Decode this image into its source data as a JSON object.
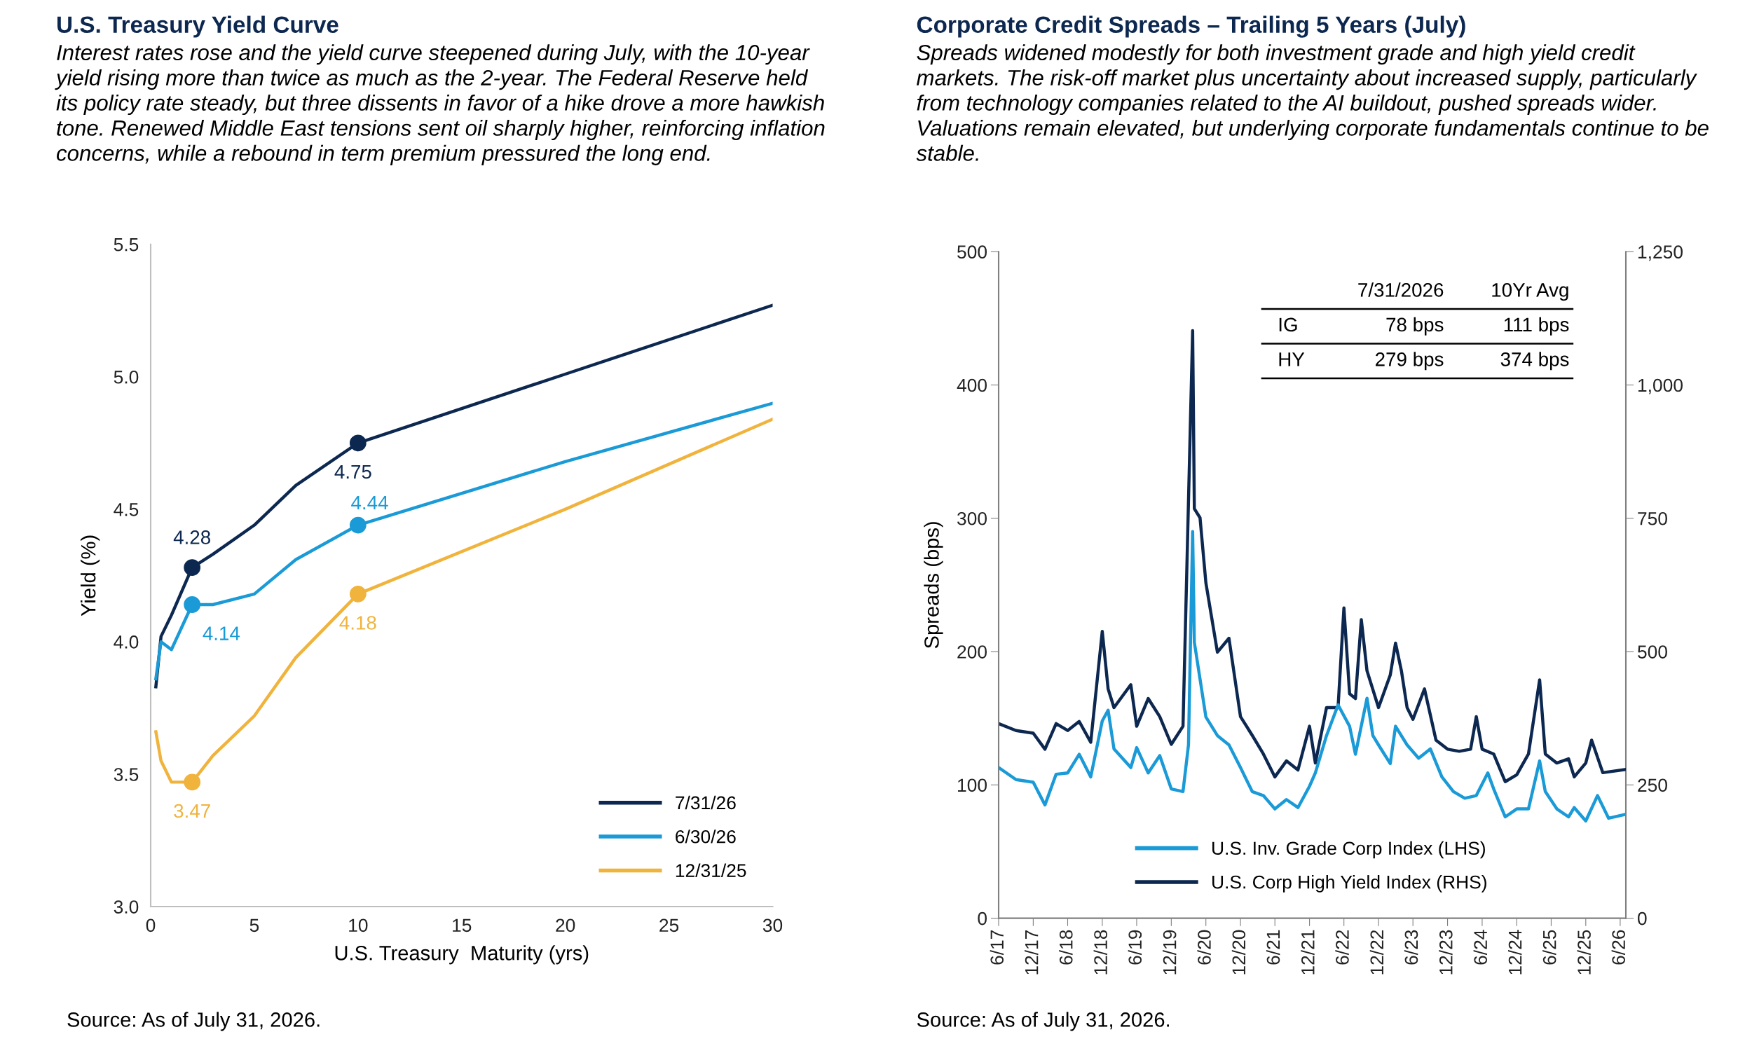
{
  "chart_data": [
    {
      "type": "line",
      "title": "U.S. Treasury Yield Curve",
      "subtitle": "Interest rates rose and the yield curve steepened during July, with the 10-year yield rising more than twice as much as the 2-year. The Federal Reserve held its policy rate steady, but three dissents in favor of a hike drove a more hawkish tone. Renewed Middle East tensions sent oil sharply higher, reinforcing inflation concerns, while a rebound in term premium pressured the long end.",
      "xlabel": "U.S. Treasury  Maturity (yrs)",
      "ylabel": "Yield (%)",
      "xlim": [
        0,
        30
      ],
      "xticks": [
        0,
        5,
        10,
        15,
        20,
        25,
        30
      ],
      "ylim": [
        3.0,
        5.5
      ],
      "yticks": [
        {
          "value": 3,
          "label": "3.0"
        },
        3.5,
        {
          "value": 4,
          "label": "4.0"
        },
        4.5,
        {
          "value": 5,
          "label": "5.0"
        },
        5.5
      ],
      "grid": false,
      "legend": "bottom right",
      "series": [
        {
          "name": "7/31/26",
          "color": "#0d2850",
          "x": [
            0.25,
            0.5,
            1,
            2,
            3,
            5,
            7,
            10,
            20,
            30
          ],
          "values": [
            3.83,
            4.02,
            4.1,
            4.28,
            4.33,
            4.44,
            4.59,
            4.75,
            5.01,
            5.27
          ]
        },
        {
          "name": "6/30/26",
          "color": "#1a9ad6",
          "x": [
            0.25,
            0.5,
            1,
            2,
            3,
            5,
            7,
            10,
            20,
            30
          ],
          "values": [
            3.86,
            4.0,
            3.97,
            4.14,
            4.14,
            4.18,
            4.31,
            4.44,
            4.68,
            4.9
          ]
        },
        {
          "name": "12/31/25",
          "color": "#f0b33c",
          "x": [
            0.25,
            0.5,
            1,
            2,
            3,
            5,
            7,
            10,
            20,
            30
          ],
          "values": [
            3.66,
            3.55,
            3.47,
            3.47,
            3.57,
            3.72,
            3.94,
            4.18,
            4.5,
            4.84
          ]
        },
        {
          "type": "scatter",
          "color": "#0d2850",
          "x": [
            2,
            10
          ],
          "values": [
            4.28,
            4.75
          ],
          "value_labels": [
            "4.28",
            "4.75"
          ]
        },
        {
          "type": "scatter",
          "color": "#1a9ad6",
          "x": [
            2,
            10
          ],
          "values": [
            4.14,
            4.44
          ],
          "value_labels": [
            "4.14",
            "4.44"
          ]
        },
        {
          "type": "scatter",
          "color": "#f0b33c",
          "x": [
            2,
            10
          ],
          "values": [
            3.47,
            4.18
          ],
          "value_labels": [
            "3.47",
            "4.18"
          ]
        }
      ],
      "annotations": [
        "Source: As of July 31, 2026."
      ]
    },
    {
      "type": "line",
      "title": "Corporate Credit Spreads – Trailing 5 Years (July)",
      "subtitle": "Spreads widened modestly for both investment grade and high yield credit markets. The risk-off market plus uncertainty about increased supply, particularly from technology companies related to the AI buildout, pushed spreads wider. Valuations remain elevated, but underlying corporate fundamentals continue to be stable.",
      "ylabel": "Spreads (bps)",
      "xlim": [
        "2017-06",
        "2026-07"
      ],
      "xticks": [
        {
          "value": "2017-06",
          "label": "6/17"
        },
        {
          "value": "2017-12",
          "label": "12/17"
        },
        {
          "value": "2018-06",
          "label": "6/18"
        },
        {
          "value": "2018-12",
          "label": "12/18"
        },
        {
          "value": "2019-06",
          "label": "6/19"
        },
        {
          "value": "2019-12",
          "label": "12/19"
        },
        {
          "value": "2020-06",
          "label": "6/20"
        },
        {
          "value": "2020-12",
          "label": "12/20"
        },
        {
          "value": "2021-06",
          "label": "6/21"
        },
        {
          "value": "2021-12",
          "label": "12/21"
        },
        {
          "value": "2022-06",
          "label": "6/22"
        },
        {
          "value": "2022-12",
          "label": "12/22"
        },
        {
          "value": "2023-06",
          "label": "6/23"
        },
        {
          "value": "2023-12",
          "label": "12/23"
        },
        {
          "value": "2024-06",
          "label": "6/24"
        },
        {
          "value": "2024-12",
          "label": "12/24"
        },
        {
          "value": "2025-06",
          "label": "6/25"
        },
        {
          "value": "2025-12",
          "label": "12/25"
        },
        {
          "value": "2026-06",
          "label": "6/26"
        }
      ],
      "ylim": [
        0,
        500
      ],
      "yticks": [
        0,
        100,
        200,
        300,
        400,
        500
      ],
      "y2lim": [
        0,
        1250
      ],
      "y2ticks": [
        0,
        250,
        500,
        750,
        {
          "value": 1000,
          "label": "1,000"
        },
        {
          "value": 1250,
          "label": "1,250"
        }
      ],
      "grid": false,
      "legend": "bottom",
      "series": [
        {
          "name": "U.S. Inv. Grade Corp Index (LHS)",
          "color": "#1a9ad6",
          "x": [
            "2017-06",
            "2017-09",
            "2017-12",
            "2018-02",
            "2018-04",
            "2018-06",
            "2018-08",
            "2018-10",
            "2018-12",
            "2019-01",
            "2019-02",
            "2019-05",
            "2019-06",
            "2019-08",
            "2019-10",
            "2019-12",
            "2020-02",
            "2020-03",
            "2020-03-23",
            "2020-04",
            "2020-06",
            "2020-08",
            "2020-10",
            "2020-12",
            "2021-02",
            "2021-04",
            "2021-06",
            "2021-08",
            "2021-10",
            "2021-12",
            "2022-01",
            "2022-03",
            "2022-05",
            "2022-07",
            "2022-08",
            "2022-10",
            "2022-11",
            "2022-12",
            "2023-02",
            "2023-03",
            "2023-05",
            "2023-07",
            "2023-09",
            "2023-11",
            "2024-01",
            "2024-03",
            "2024-05",
            "2024-07",
            "2024-08",
            "2024-10",
            "2024-12",
            "2025-02",
            "2025-04",
            "2025-05",
            "2025-07",
            "2025-09",
            "2025-10",
            "2025-12",
            "2026-02",
            "2026-04",
            "2026-07"
          ],
          "values": [
            113,
            104,
            102,
            85,
            108,
            109,
            123,
            106,
            148,
            156,
            127,
            113,
            128,
            109,
            122,
            97,
            95,
            130,
            290,
            207,
            151,
            137,
            130,
            113,
            95,
            92,
            82,
            89,
            83,
            99,
            109,
            137,
            160,
            144,
            123,
            165,
            137,
            130,
            116,
            144,
            130,
            120,
            127,
            106,
            95,
            90,
            92,
            109,
            97,
            76,
            82,
            82,
            118,
            95,
            82,
            76,
            83,
            73,
            92,
            75,
            78
          ]
        },
        {
          "name": "U.S. Corp High Yield Index (RHS)",
          "color": "#0d2850",
          "axis": "y2",
          "x": [
            "2017-06",
            "2017-09",
            "2017-12",
            "2018-02",
            "2018-04",
            "2018-06",
            "2018-08",
            "2018-10",
            "2018-12",
            "2019-01",
            "2019-02",
            "2019-05",
            "2019-06",
            "2019-08",
            "2019-10",
            "2019-12",
            "2020-02",
            "2020-03-23",
            "2020-04",
            "2020-05",
            "2020-06",
            "2020-08",
            "2020-10",
            "2020-12",
            "2021-02",
            "2021-04",
            "2021-06",
            "2021-08",
            "2021-10",
            "2021-12",
            "2022-01",
            "2022-03",
            "2022-05",
            "2022-06",
            "2022-07",
            "2022-08",
            "2022-09",
            "2022-10",
            "2022-12",
            "2023-02",
            "2023-03",
            "2023-04",
            "2023-05",
            "2023-06",
            "2023-08",
            "2023-10",
            "2023-12",
            "2024-02",
            "2024-04",
            "2024-05",
            "2024-06",
            "2024-08",
            "2024-10",
            "2024-12",
            "2025-02",
            "2025-04",
            "2025-05",
            "2025-07",
            "2025-09",
            "2025-10",
            "2025-12",
            "2026-01",
            "2026-03",
            "2026-07"
          ],
          "values": [
            365,
            352,
            347,
            317,
            365,
            352,
            369,
            330,
            538,
            430,
            395,
            438,
            360,
            412,
            378,
            326,
            360,
            1102,
            768,
            751,
            629,
            499,
            525,
            378,
            343,
            308,
            265,
            295,
            278,
            360,
            291,
            395,
            395,
            582,
            421,
            412,
            560,
            464,
            395,
            456,
            516,
            464,
            395,
            373,
            430,
            334,
            317,
            313,
            317,
            378,
            317,
            308,
            256,
            269,
            308,
            447,
            308,
            291,
            299,
            265,
            291,
            334,
            273,
            279
          ]
        }
      ],
      "annotations": [
        "Source: As of July 31, 2026.",
        "7/31/2026",
        "10Yr Avg",
        "IG",
        "78 bps",
        "111 bps",
        "HY",
        "279 bps",
        "374 bps"
      ]
    }
  ]
}
